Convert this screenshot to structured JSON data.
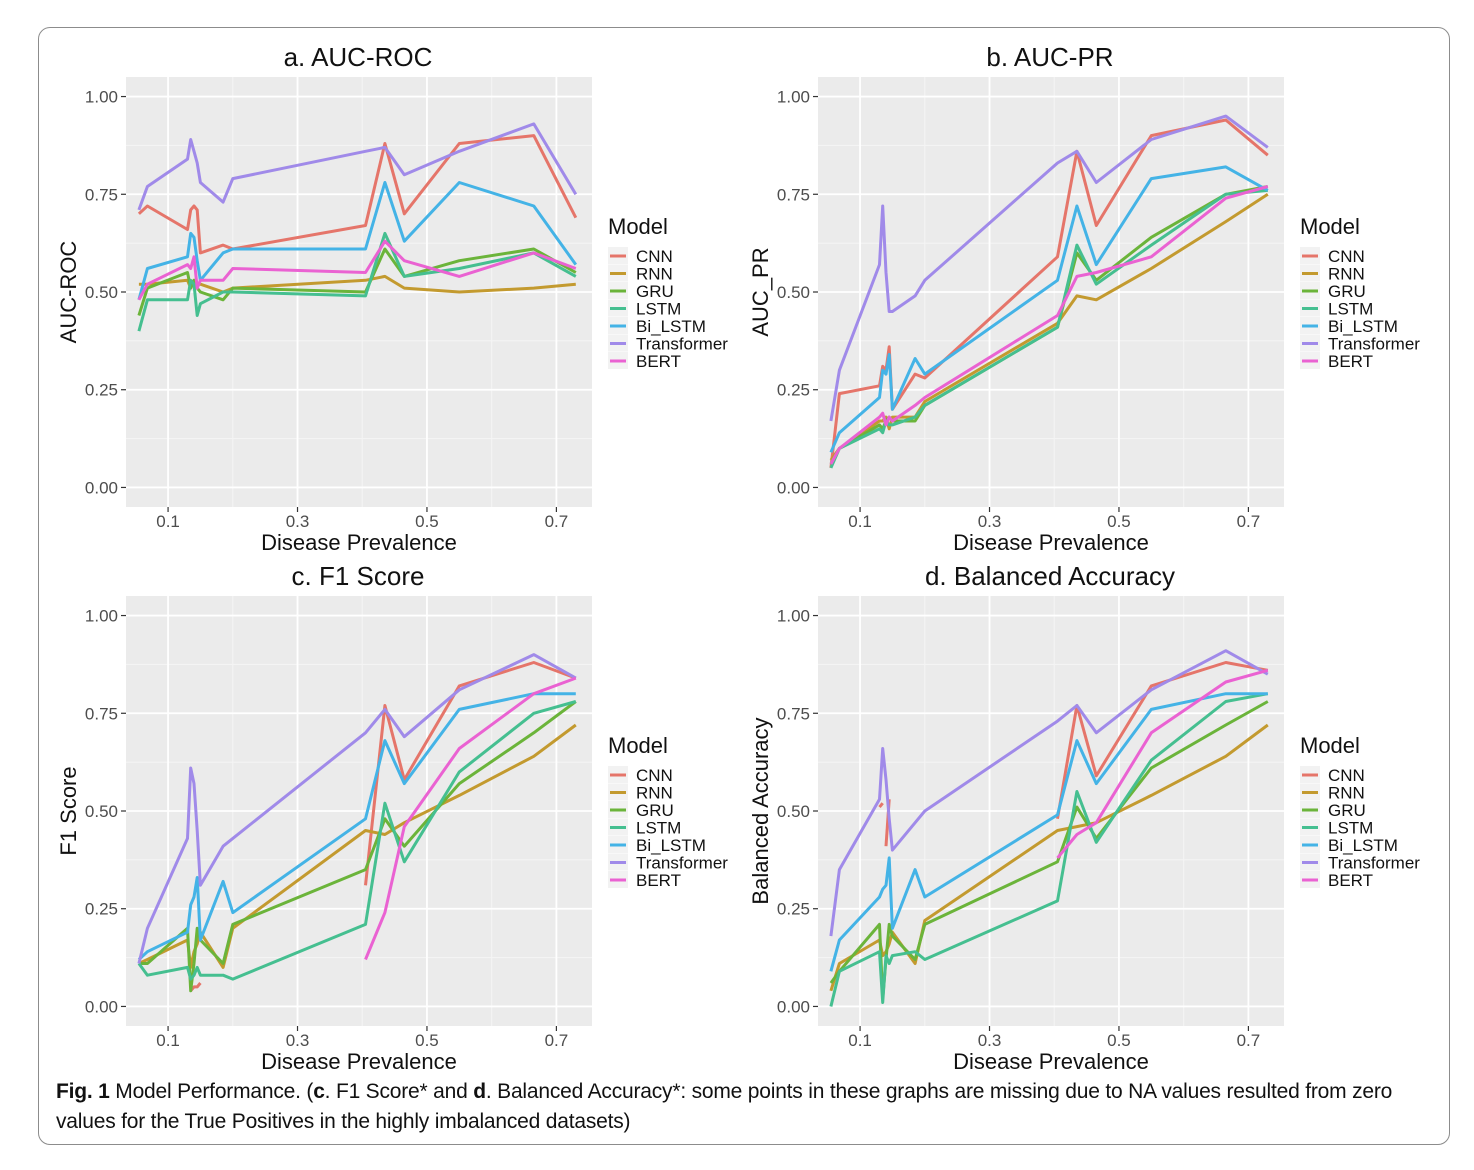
{
  "caption": {
    "fig_label": "Fig. 1",
    "text_intro": " Model Performance. (",
    "c_letter": "c",
    "c_text": ". F1 Score* and ",
    "d_letter": "d",
    "d_text": ". Balanced Accuracy*: some points in these graphs are missing due to NA values resulted from zero values for the True Positives in the highly imbalanced datasets)"
  },
  "legend": {
    "title": "Model",
    "entries": [
      "CNN",
      "RNN",
      "GRU",
      "LSTM",
      "Bi_LSTM",
      "Transformer",
      "BERT"
    ]
  },
  "colors": {
    "CNN": "#e5756a",
    "RNN": "#c39a2f",
    "GRU": "#6bb43a",
    "LSTM": "#45bf90",
    "Bi_LSTM": "#44b3e6",
    "Transformer": "#a08ae9",
    "BERT": "#ea62d2",
    "panel_bg": "#ebebeb",
    "grid": "#ffffff"
  },
  "chart_data": [
    {
      "type": "line",
      "title": "a. AUC-ROC",
      "xlabel": "Disease Prevalence",
      "ylabel": "AUC-ROC",
      "xlim": [
        0.035,
        0.755
      ],
      "ylim": [
        -0.05,
        1.05
      ],
      "xticks": [
        "0.1",
        "0.3",
        "0.5",
        "0.7"
      ],
      "yticks": [
        "0.00",
        "0.25",
        "0.50",
        "0.75",
        "1.00"
      ],
      "series": [
        {
          "name": "CNN",
          "x": [
            0.055,
            0.068,
            0.13,
            0.135,
            0.14,
            0.145,
            0.15,
            0.185,
            0.2,
            0.405,
            0.435,
            0.465,
            0.55,
            0.665,
            0.73
          ],
          "y": [
            0.7,
            0.72,
            0.66,
            0.71,
            0.72,
            0.71,
            0.6,
            0.62,
            0.61,
            0.67,
            0.88,
            0.7,
            0.88,
            0.9,
            0.69
          ]
        },
        {
          "name": "RNN",
          "x": [
            0.055,
            0.068,
            0.13,
            0.135,
            0.14,
            0.145,
            0.15,
            0.185,
            0.2,
            0.405,
            0.435,
            0.465,
            0.55,
            0.665,
            0.73
          ],
          "y": [
            0.52,
            0.52,
            0.53,
            0.51,
            0.53,
            0.52,
            0.52,
            0.5,
            0.51,
            0.53,
            0.54,
            0.51,
            0.5,
            0.51,
            0.52
          ]
        },
        {
          "name": "GRU",
          "x": [
            0.055,
            0.068,
            0.13,
            0.135,
            0.14,
            0.145,
            0.15,
            0.185,
            0.2,
            0.405,
            0.435,
            0.465,
            0.55,
            0.665,
            0.73
          ],
          "y": [
            0.44,
            0.51,
            0.55,
            0.51,
            0.53,
            0.51,
            0.5,
            0.48,
            0.51,
            0.5,
            0.61,
            0.54,
            0.58,
            0.61,
            0.55
          ]
        },
        {
          "name": "LSTM",
          "x": [
            0.055,
            0.068,
            0.13,
            0.135,
            0.14,
            0.145,
            0.15,
            0.185,
            0.2,
            0.405,
            0.435,
            0.465,
            0.55,
            0.665,
            0.73
          ],
          "y": [
            0.4,
            0.48,
            0.48,
            0.53,
            0.52,
            0.44,
            0.47,
            0.5,
            0.5,
            0.49,
            0.65,
            0.54,
            0.56,
            0.6,
            0.54
          ]
        },
        {
          "name": "Bi_LSTM",
          "x": [
            0.055,
            0.068,
            0.13,
            0.135,
            0.14,
            0.145,
            0.15,
            0.185,
            0.2,
            0.405,
            0.435,
            0.465,
            0.55,
            0.665,
            0.73
          ],
          "y": [
            0.48,
            0.56,
            0.59,
            0.65,
            0.64,
            0.58,
            0.53,
            0.6,
            0.61,
            0.61,
            0.78,
            0.63,
            0.78,
            0.72,
            0.57
          ]
        },
        {
          "name": "Transformer",
          "x": [
            0.055,
            0.068,
            0.13,
            0.135,
            0.14,
            0.145,
            0.15,
            0.185,
            0.2,
            0.405,
            0.435,
            0.465,
            0.55,
            0.665,
            0.73
          ],
          "y": [
            0.71,
            0.77,
            0.84,
            0.89,
            0.86,
            0.83,
            0.78,
            0.73,
            0.79,
            0.86,
            0.87,
            0.8,
            0.86,
            0.93,
            0.75
          ]
        },
        {
          "name": "BERT",
          "x": [
            0.055,
            0.068,
            0.13,
            0.135,
            0.14,
            0.145,
            0.15,
            0.185,
            0.2,
            0.405,
            0.435,
            0.465,
            0.55,
            0.665,
            0.73
          ],
          "y": [
            0.48,
            0.52,
            0.57,
            0.56,
            0.59,
            0.51,
            0.53,
            0.53,
            0.56,
            0.55,
            0.63,
            0.58,
            0.54,
            0.6,
            0.56
          ]
        }
      ]
    },
    {
      "type": "line",
      "title": "b. AUC-PR",
      "xlabel": "Disease Prevalence",
      "ylabel": "AUC_PR",
      "xlim": [
        0.035,
        0.755
      ],
      "ylim": [
        -0.05,
        1.05
      ],
      "xticks": [
        "0.1",
        "0.3",
        "0.5",
        "0.7"
      ],
      "yticks": [
        "0.00",
        "0.25",
        "0.50",
        "0.75",
        "1.00"
      ],
      "series": [
        {
          "name": "CNN",
          "x": [
            0.055,
            0.068,
            0.13,
            0.135,
            0.14,
            0.145,
            0.15,
            0.185,
            0.2,
            0.405,
            0.435,
            0.465,
            0.55,
            0.665,
            0.73
          ],
          "y": [
            0.05,
            0.24,
            0.26,
            0.31,
            0.3,
            0.36,
            0.2,
            0.29,
            0.28,
            0.59,
            0.86,
            0.67,
            0.9,
            0.94,
            0.85
          ]
        },
        {
          "name": "RNN",
          "x": [
            0.055,
            0.068,
            0.13,
            0.135,
            0.14,
            0.145,
            0.15,
            0.185,
            0.2,
            0.405,
            0.435,
            0.465,
            0.55,
            0.665,
            0.73
          ],
          "y": [
            0.07,
            0.1,
            0.17,
            0.17,
            0.18,
            0.15,
            0.18,
            0.18,
            0.22,
            0.42,
            0.49,
            0.48,
            0.56,
            0.68,
            0.75
          ]
        },
        {
          "name": "GRU",
          "x": [
            0.055,
            0.068,
            0.13,
            0.135,
            0.14,
            0.145,
            0.15,
            0.185,
            0.2,
            0.405,
            0.435,
            0.465,
            0.55,
            0.665,
            0.73
          ],
          "y": [
            0.06,
            0.1,
            0.16,
            0.15,
            0.17,
            0.18,
            0.17,
            0.17,
            0.21,
            0.41,
            0.6,
            0.53,
            0.64,
            0.75,
            0.77
          ]
        },
        {
          "name": "LSTM",
          "x": [
            0.055,
            0.068,
            0.13,
            0.135,
            0.14,
            0.145,
            0.15,
            0.185,
            0.2,
            0.405,
            0.435,
            0.465,
            0.55,
            0.665,
            0.73
          ],
          "y": [
            0.05,
            0.1,
            0.15,
            0.14,
            0.17,
            0.16,
            0.16,
            0.18,
            0.21,
            0.41,
            0.62,
            0.52,
            0.62,
            0.75,
            0.76
          ]
        },
        {
          "name": "Bi_LSTM",
          "x": [
            0.055,
            0.068,
            0.13,
            0.135,
            0.14,
            0.145,
            0.15,
            0.185,
            0.2,
            0.405,
            0.435,
            0.465,
            0.55,
            0.665,
            0.73
          ],
          "y": [
            0.09,
            0.14,
            0.23,
            0.3,
            0.29,
            0.34,
            0.2,
            0.33,
            0.29,
            0.53,
            0.72,
            0.57,
            0.79,
            0.82,
            0.76
          ]
        },
        {
          "name": "Transformer",
          "x": [
            0.055,
            0.068,
            0.13,
            0.135,
            0.14,
            0.145,
            0.15,
            0.185,
            0.2,
            0.405,
            0.435,
            0.465,
            0.55,
            0.665,
            0.73
          ],
          "y": [
            0.17,
            0.3,
            0.57,
            0.72,
            0.55,
            0.45,
            0.45,
            0.49,
            0.53,
            0.83,
            0.86,
            0.78,
            0.89,
            0.95,
            0.87
          ]
        },
        {
          "name": "BERT",
          "x": [
            0.055,
            0.068,
            0.13,
            0.135,
            0.14,
            0.145,
            0.15,
            0.185,
            0.2,
            0.405,
            0.435,
            0.465,
            0.55,
            0.665,
            0.73
          ],
          "y": [
            0.06,
            0.1,
            0.18,
            0.19,
            0.16,
            0.18,
            0.17,
            0.21,
            0.23,
            0.44,
            0.54,
            0.55,
            0.59,
            0.74,
            0.77
          ]
        }
      ]
    },
    {
      "type": "line",
      "title": "c. F1 Score",
      "xlabel": "Disease Prevalence",
      "ylabel": "F1 Score",
      "xlim": [
        0.035,
        0.755
      ],
      "ylim": [
        -0.05,
        1.05
      ],
      "xticks": [
        "0.1",
        "0.3",
        "0.5",
        "0.7"
      ],
      "yticks": [
        "0.00",
        "0.25",
        "0.50",
        "0.75",
        "1.00"
      ],
      "series": [
        {
          "name": "CNN",
          "x": [
            0.135,
            0.14,
            0.145,
            0.15
          ],
          "y": [
            0.04,
            0.05,
            0.05,
            0.06
          ],
          "x2": [
            0.405,
            0.435,
            0.465,
            0.55,
            0.665,
            0.73
          ],
          "y2": [
            0.31,
            0.77,
            0.58,
            0.82,
            0.88,
            0.84
          ]
        },
        {
          "name": "RNN",
          "x": [
            0.055,
            0.068,
            0.13,
            0.135,
            0.14,
            0.145,
            0.15,
            0.185,
            0.2,
            0.405,
            0.435,
            0.465,
            0.55,
            0.665,
            0.73
          ],
          "y": [
            0.11,
            0.12,
            0.17,
            0.1,
            0.14,
            0.16,
            0.19,
            0.1,
            0.2,
            0.45,
            0.44,
            0.47,
            0.54,
            0.64,
            0.72
          ]
        },
        {
          "name": "GRU",
          "x": [
            0.055,
            0.068,
            0.13,
            0.135,
            0.14,
            0.145,
            0.15,
            0.185,
            0.2,
            0.405,
            0.435,
            0.465,
            0.55,
            0.665,
            0.73
          ],
          "y": [
            0.11,
            0.11,
            0.2,
            0.04,
            0.11,
            0.2,
            0.17,
            0.11,
            0.21,
            0.35,
            0.48,
            0.41,
            0.57,
            0.7,
            0.78
          ]
        },
        {
          "name": "LSTM",
          "x": [
            0.055,
            0.068,
            0.13,
            0.135,
            0.14,
            0.145,
            0.15,
            0.185,
            0.2,
            0.405,
            0.435,
            0.465,
            0.55,
            0.665,
            0.73
          ],
          "y": [
            0.11,
            0.08,
            0.1,
            0.07,
            0.08,
            0.1,
            0.08,
            0.08,
            0.07,
            0.21,
            0.52,
            0.37,
            0.6,
            0.75,
            0.78
          ]
        },
        {
          "name": "Bi_LSTM",
          "x": [
            0.055,
            0.068,
            0.13,
            0.135,
            0.14,
            0.145,
            0.15,
            0.185,
            0.2,
            0.405,
            0.435,
            0.465,
            0.55,
            0.665,
            0.73
          ],
          "y": [
            0.12,
            0.14,
            0.19,
            0.26,
            0.28,
            0.33,
            0.17,
            0.32,
            0.24,
            0.48,
            0.68,
            0.57,
            0.76,
            0.8,
            0.8
          ]
        },
        {
          "name": "Transformer",
          "x": [
            0.055,
            0.068,
            0.13,
            0.135,
            0.14,
            0.145,
            0.15,
            0.185,
            0.2,
            0.405,
            0.435,
            0.465,
            0.55,
            0.665,
            0.73
          ],
          "y": [
            0.11,
            0.2,
            0.43,
            0.61,
            0.57,
            0.45,
            0.31,
            0.41,
            0.43,
            0.7,
            0.76,
            0.69,
            0.81,
            0.9,
            0.84
          ]
        },
        {
          "name": "BERT",
          "x": [
            0.405,
            0.435,
            0.465,
            0.55,
            0.665,
            0.73
          ],
          "y": [
            0.12,
            0.24,
            0.46,
            0.66,
            0.8,
            0.84
          ]
        }
      ]
    },
    {
      "type": "line",
      "title": "d. Balanced Accuracy",
      "xlabel": "Disease Prevalence",
      "ylabel": "Balanced Accuracy",
      "xlim": [
        0.035,
        0.755
      ],
      "ylim": [
        -0.05,
        1.05
      ],
      "xticks": [
        "0.1",
        "0.3",
        "0.5",
        "0.7"
      ],
      "yticks": [
        "0.00",
        "0.25",
        "0.50",
        "0.75",
        "1.00"
      ],
      "series": [
        {
          "name": "CNN",
          "x": [
            0.13,
            0.135
          ],
          "y": [
            0.51,
            0.52
          ],
          "x2": [
            0.14,
            0.145
          ],
          "y2": [
            0.41,
            0.53
          ],
          "x3": [
            0.405,
            0.435,
            0.465,
            0.55,
            0.665,
            0.73
          ],
          "y3": [
            0.48,
            0.77,
            0.59,
            0.82,
            0.88,
            0.86
          ]
        },
        {
          "name": "RNN",
          "x": [
            0.055,
            0.068,
            0.13,
            0.135,
            0.14,
            0.145,
            0.15,
            0.185,
            0.2,
            0.405,
            0.435,
            0.465,
            0.55,
            0.665,
            0.73
          ],
          "y": [
            0.04,
            0.11,
            0.17,
            0.13,
            0.14,
            0.16,
            0.19,
            0.11,
            0.22,
            0.45,
            0.46,
            0.47,
            0.54,
            0.64,
            0.72
          ]
        },
        {
          "name": "GRU",
          "x": [
            0.055,
            0.068,
            0.13,
            0.135,
            0.14,
            0.145,
            0.15,
            0.185,
            0.2,
            0.405,
            0.435,
            0.465,
            0.55,
            0.665,
            0.73
          ],
          "y": [
            0.06,
            0.09,
            0.21,
            0.02,
            0.12,
            0.21,
            0.18,
            0.12,
            0.21,
            0.37,
            0.51,
            0.43,
            0.61,
            0.72,
            0.78
          ]
        },
        {
          "name": "LSTM",
          "x": [
            0.055,
            0.068,
            0.13,
            0.135,
            0.14,
            0.145,
            0.15,
            0.185,
            0.2,
            0.405,
            0.435,
            0.465,
            0.55,
            0.665,
            0.73
          ],
          "y": [
            0.0,
            0.09,
            0.14,
            0.01,
            0.13,
            0.11,
            0.13,
            0.14,
            0.12,
            0.27,
            0.55,
            0.42,
            0.63,
            0.78,
            0.8
          ]
        },
        {
          "name": "Bi_LSTM",
          "x": [
            0.055,
            0.068,
            0.13,
            0.135,
            0.14,
            0.145,
            0.15,
            0.185,
            0.2,
            0.405,
            0.435,
            0.465,
            0.55,
            0.665,
            0.73
          ],
          "y": [
            0.09,
            0.17,
            0.28,
            0.3,
            0.31,
            0.38,
            0.2,
            0.35,
            0.28,
            0.49,
            0.68,
            0.57,
            0.76,
            0.8,
            0.8
          ]
        },
        {
          "name": "Transformer",
          "x": [
            0.055,
            0.068,
            0.13,
            0.135,
            0.14,
            0.145,
            0.15,
            0.185,
            0.2,
            0.405,
            0.435,
            0.465,
            0.55,
            0.665,
            0.73
          ],
          "y": [
            0.18,
            0.35,
            0.53,
            0.66,
            0.58,
            0.48,
            0.4,
            0.47,
            0.5,
            0.73,
            0.77,
            0.7,
            0.81,
            0.91,
            0.85
          ]
        },
        {
          "name": "BERT",
          "x": [
            0.405,
            0.435,
            0.465,
            0.55,
            0.665,
            0.73
          ],
          "y": [
            0.38,
            0.44,
            0.47,
            0.7,
            0.83,
            0.86
          ]
        }
      ]
    }
  ]
}
